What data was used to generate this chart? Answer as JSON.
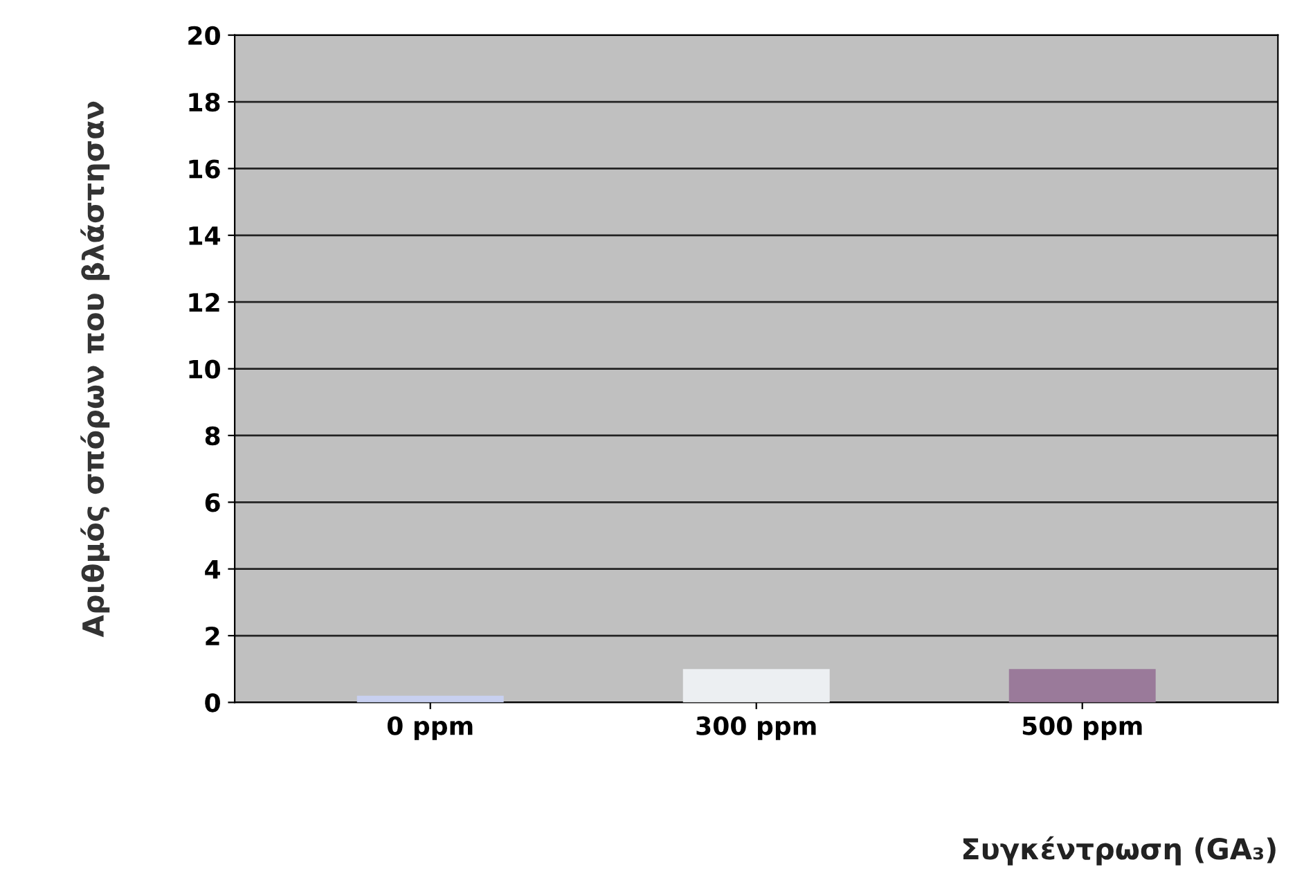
{
  "chart_data": {
    "type": "bar",
    "xlabel": "Συγκέντρωση (GA₃)",
    "ylabel": "Αριθμός σπόρων που βλάστησαν",
    "categories": [
      "0 ppm",
      "300 ppm",
      "500 ppm"
    ],
    "values": [
      0.2,
      1,
      1
    ],
    "colors": [
      "#c8d0f0",
      "#eceff2",
      "#9a7a9a"
    ],
    "ylim": [
      0,
      20
    ],
    "yticks": [
      0,
      2,
      4,
      6,
      8,
      10,
      12,
      14,
      16,
      18,
      20
    ],
    "grid": "y"
  }
}
